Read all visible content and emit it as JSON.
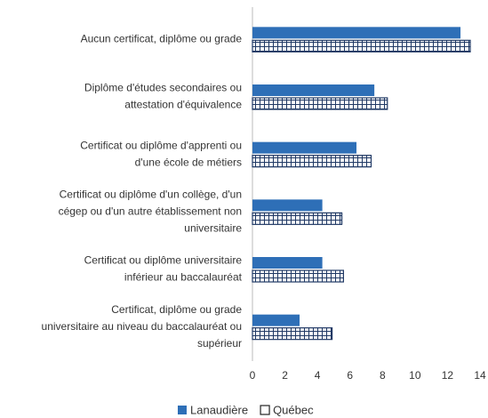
{
  "chart_data": {
    "type": "hbar",
    "categories": [
      [
        "Aucun certificat, diplôme ou grade"
      ],
      [
        "Diplôme d'études secondaires ou",
        "attestation d'équivalence"
      ],
      [
        "Certificat ou diplôme d'apprenti ou",
        "d'une école de métiers"
      ],
      [
        "Certificat ou diplôme d'un collège, d'un",
        "cégep ou d'un autre établissement non",
        "universitaire"
      ],
      [
        "Certificat ou diplôme universitaire",
        "inférieur au baccalauréat"
      ],
      [
        "Certificat, diplôme ou grade",
        "universitaire au niveau du baccalauréat ou",
        "supérieur"
      ]
    ],
    "series": [
      {
        "name": "Lanaudière",
        "color": "#2e6fb7",
        "values": [
          12.8,
          7.5,
          6.4,
          4.3,
          4.3,
          2.9
        ]
      },
      {
        "name": "Québec",
        "color": "#1f3864",
        "pattern": "crosshatch",
        "values": [
          13.4,
          8.3,
          7.3,
          5.5,
          5.6,
          4.9
        ]
      }
    ],
    "xlim": [
      0,
      14
    ],
    "xticks": [
      0,
      2,
      4,
      6,
      8,
      10,
      12,
      14
    ],
    "grid": false,
    "legend": "bottom"
  }
}
